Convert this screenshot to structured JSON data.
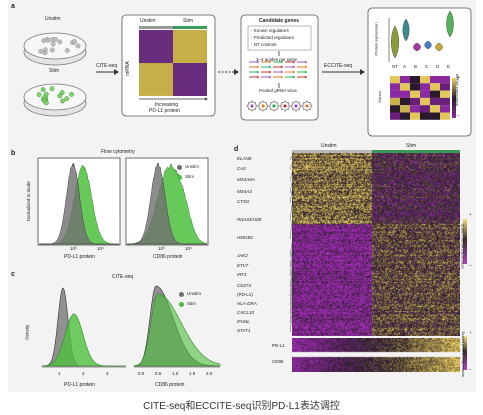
{
  "panel_labels": {
    "a": "a",
    "b": "b",
    "c": "c",
    "d": "d"
  },
  "panel_a": {
    "dish_unstim": "Unstim",
    "dish_stim": "Stim",
    "arrow1_label": "CITE-seq",
    "matrix_col_unstim": "Unstim",
    "matrix_col_stim": "Stim",
    "matrix_ylabel": "mRNA",
    "matrix_xlabel_1": "Increasing",
    "matrix_xlabel_2": "PD-L1 protein",
    "candidate_title": "Candidate genes",
    "candidate_items": [
      "Known regulators",
      "Predicted regulators",
      "NT controls"
    ],
    "guides_label": "3–4 guides per gene",
    "pooled_label": "Pooled gRNA virus",
    "arrow2_label": "ECCITE-seq",
    "violin_ylabel": "Protein expression",
    "violin_categories": [
      "NT",
      "A",
      "B",
      "C",
      "D",
      "E"
    ],
    "heat_ylabel": "Genes",
    "heat_scale_label": "mRNA expression",
    "scale_plus": "+",
    "scale_minus": "−"
  },
  "panel_b": {
    "title": "Flow cytometry",
    "ylabel": "Normalized to mode",
    "left_xlabel": "PD-L1 protein",
    "right_xlabel": "CD86 protein",
    "left_ticks": [
      "10³",
      "10⁴"
    ],
    "right_ticks": [
      "10³",
      "10⁴"
    ],
    "legend": [
      "Unstim",
      "Stim"
    ]
  },
  "panel_c": {
    "title": "CITE-seq",
    "ylabel": "Density",
    "left_xlabel": "PD-L1 protein",
    "right_xlabel": "CD86 protein",
    "left_ticks": [
      "1",
      "2",
      "3"
    ],
    "right_ticks": [
      "0.0",
      "0.5",
      "1.0",
      "1.5",
      "2.0"
    ],
    "legend": [
      "Unstim",
      "Stim"
    ]
  },
  "panel_d": {
    "header_unstim": "Unstim",
    "header_stim": "Stim",
    "genes_top": [
      "ELANE",
      "CA2",
      "MS4A6A",
      "MS4A3",
      "CTSG",
      "RNASEH2B",
      "HMGB2"
    ],
    "genes_bottom": [
      "JAK2",
      "ETV7",
      "IRF1",
      "CD274",
      "(PD-L1)",
      "HLA-DRA",
      "CXCL10",
      "IFI44L",
      "STAT1"
    ],
    "mrna_scale": "Scaled mRNA expression",
    "protein_rows": [
      "PD-L1",
      "CD86"
    ],
    "protein_scale": "Scaled protein expression",
    "scale_plus": "+",
    "scale_minus": "−"
  },
  "colors": {
    "unstim": "#6f6f6f",
    "stim": "#4cbf3c",
    "heat_low": "#7a1c8c",
    "heat_high": "#f2d35a",
    "header_stim": "#3a9a58",
    "header_unstim": "#b8b8b8"
  },
  "caption": "CITE-seq和ECCITE-seq识别PD-L1表达调控"
}
